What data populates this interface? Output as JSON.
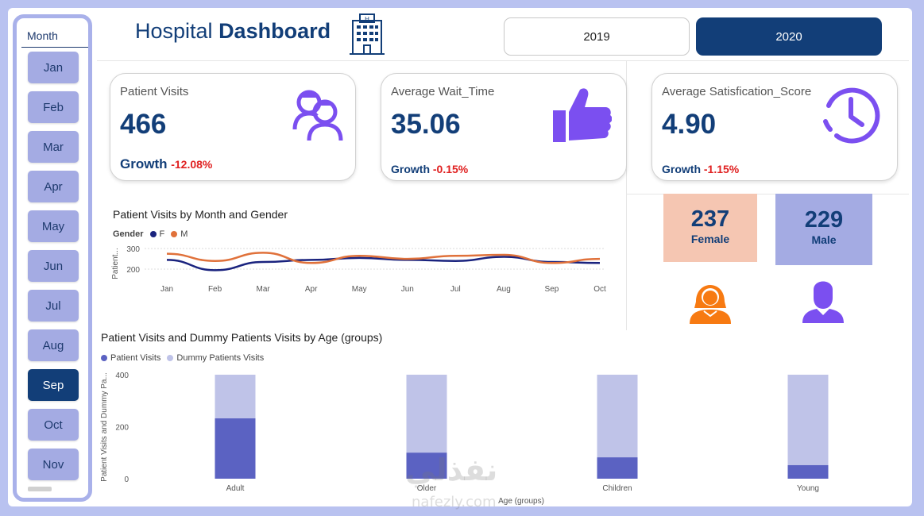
{
  "colors": {
    "navy": "#123e78",
    "slicer_bg": "#a4abe3",
    "female_line": "#1a237e",
    "male_line": "#e0713a",
    "female_card": "#f5c6b2",
    "male_card": "#a4abe3",
    "bar_dark": "#5b62c2",
    "bar_light": "#bfc3e8",
    "negative": "#e02020",
    "icon_purple": "#7b4ff0",
    "icon_orange": "#f77a12"
  },
  "slicer": {
    "title": "Month",
    "months": [
      "Jan",
      "Feb",
      "Mar",
      "Apr",
      "May",
      "Jun",
      "Jul",
      "Aug",
      "Sep",
      "Oct",
      "Nov"
    ],
    "selected": "Sep"
  },
  "header": {
    "title_light": "Hospital",
    "title_bold": "Dashboard",
    "icon": "hospital-building-icon"
  },
  "years": {
    "y2019": "2019",
    "y2020": "2020",
    "selected": "2020"
  },
  "kpis": [
    {
      "label": "Patient Visits",
      "value": "466",
      "growth_label": "Growth",
      "growth_value": "-12.08%",
      "icon": "patients-icon"
    },
    {
      "label": "Average Wait_Time",
      "value": "35.06",
      "growth_label": "Growth",
      "growth_value": "-0.15%",
      "icon": "thumbs-up-icon"
    },
    {
      "label": "Average Satisfication_Score",
      "value": "4.90",
      "growth_label": "Growth",
      "growth_value": "-1.15%",
      "icon": "clock-icon"
    }
  ],
  "gender": {
    "female": {
      "count": "237",
      "label": "Female",
      "icon": "female-user-icon"
    },
    "male": {
      "count": "229",
      "label": "Male",
      "icon": "male-user-icon"
    }
  },
  "line_chart": {
    "title": "Patient Visits by Month and Gender",
    "legend_title": "Gender",
    "ylabel": "Patient...",
    "chart_data": {
      "type": "line",
      "x": [
        "Jan",
        "Feb",
        "Mar",
        "Apr",
        "May",
        "Jun",
        "Jul",
        "Aug",
        "Sep",
        "Oct"
      ],
      "yticks": [
        200,
        300
      ],
      "ylim": [
        150,
        320
      ],
      "series": [
        {
          "name": "F",
          "values": [
            245,
            195,
            235,
            245,
            255,
            245,
            240,
            260,
            235,
            230
          ]
        },
        {
          "name": "M",
          "values": [
            275,
            240,
            280,
            230,
            265,
            250,
            265,
            270,
            230,
            250
          ]
        }
      ]
    }
  },
  "bar_chart": {
    "title": "Patient Visits and Dummy Patients Visits by Age (groups)",
    "xlabel": "Age (groups)",
    "ylabel": "Patient Visits and Dummy Pa...",
    "chart_data": {
      "type": "bar",
      "categories": [
        "Adult",
        "Older",
        "Children",
        "Young"
      ],
      "yticks": [
        0,
        200,
        400
      ],
      "ylim": [
        0,
        400
      ],
      "series": [
        {
          "name": "Patient Visits",
          "values": [
            232,
            100,
            82,
            52
          ]
        },
        {
          "name": "Dummy Patients Visits",
          "values": [
            400,
            400,
            400,
            400
          ]
        }
      ]
    }
  },
  "watermark": {
    "text": "نفذلي",
    "sub": "nafezly.com"
  }
}
